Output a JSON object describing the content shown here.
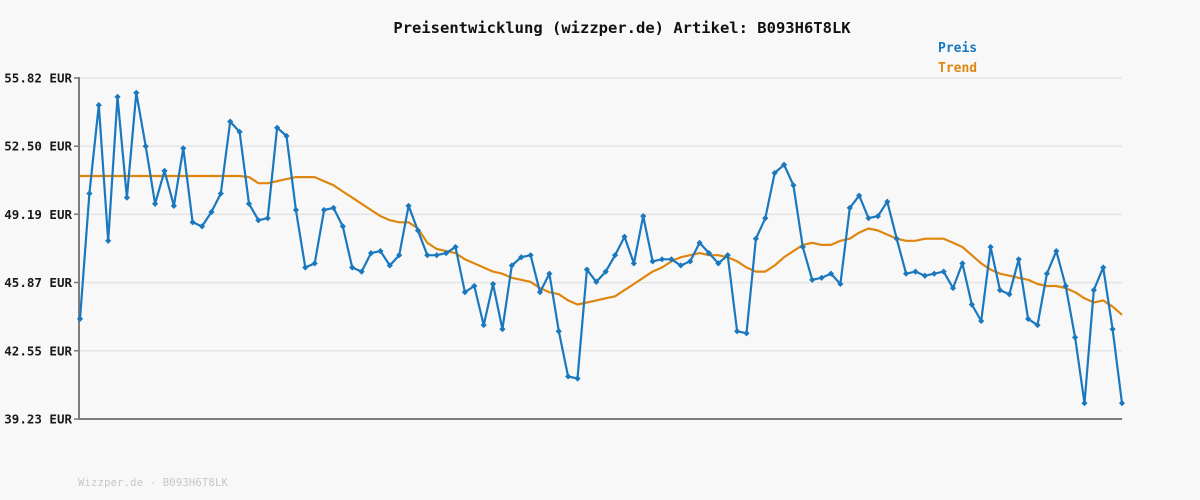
{
  "title": "Preisentwicklung (wizzper.de) Artikel: B093H6T8LK",
  "legend": {
    "price_label": "Preis",
    "trend_label": "Trend"
  },
  "footer": "Wizzper.de - B093H6T8LK",
  "colors": {
    "price": "#1a78be",
    "trend": "#de860f",
    "background": "#f8f8f8",
    "grid": "#e5e5e5",
    "axis": "#7d7d7d",
    "title_text": "#111111",
    "tick_text": "#1a1a1a",
    "footer_text": "#c6c6c6"
  },
  "y_axis": {
    "unit": "EUR",
    "tick_labels": [
      "55.82 EUR",
      "52.50 EUR",
      "49.19 EUR",
      "45.87 EUR",
      "42.55 EUR",
      "39.23 EUR"
    ],
    "tick_values": [
      55.82,
      52.5,
      49.19,
      45.87,
      42.55,
      39.23
    ]
  },
  "x_axis": {
    "tick_labels": []
  },
  "chart_data": {
    "type": "line",
    "title": "Preisentwicklung (wizzper.de) Artikel: B093H6T8LK",
    "xlabel": "",
    "ylabel": "EUR",
    "ylim": [
      39.23,
      55.82
    ],
    "grid": true,
    "legend_position": "top-right",
    "n_points": 112,
    "series": [
      {
        "name": "Preis",
        "color": "#1a78be",
        "marker": "diamond",
        "values": [
          44.1,
          50.2,
          54.5,
          47.9,
          54.9,
          50.0,
          55.1,
          52.5,
          49.7,
          51.3,
          49.6,
          52.4,
          48.8,
          48.6,
          49.3,
          50.2,
          53.7,
          53.2,
          49.7,
          48.9,
          49.0,
          53.4,
          53.0,
          49.4,
          46.6,
          46.8,
          49.4,
          49.5,
          48.6,
          46.6,
          46.4,
          47.3,
          47.4,
          46.7,
          47.2,
          49.6,
          48.4,
          47.2,
          47.2,
          47.3,
          47.6,
          45.4,
          45.7,
          43.8,
          45.8,
          43.6,
          46.7,
          47.1,
          47.2,
          45.4,
          46.3,
          43.5,
          41.3,
          41.2,
          46.5,
          45.9,
          46.4,
          47.2,
          48.1,
          46.8,
          49.1,
          46.9,
          47.0,
          47.0,
          46.7,
          46.9,
          47.8,
          47.3,
          46.8,
          47.2,
          43.5,
          43.4,
          48.0,
          49.0,
          51.2,
          51.6,
          50.6,
          47.6,
          46.0,
          46.1,
          46.3,
          45.8,
          49.5,
          50.1,
          49.0,
          49.1,
          49.8,
          48.0,
          46.3,
          46.4,
          46.2,
          46.3,
          46.4,
          45.6,
          46.8,
          44.8,
          44.0,
          47.6,
          45.5,
          45.3,
          47.0,
          44.1,
          43.8,
          46.3,
          47.4,
          45.7,
          43.2,
          40.0,
          45.5,
          46.6,
          43.6,
          40.0
        ]
      },
      {
        "name": "Trend",
        "color": "#de860f",
        "marker": "none",
        "values": [
          51.05,
          51.05,
          51.05,
          51.05,
          51.05,
          51.05,
          51.05,
          51.05,
          51.05,
          51.05,
          51.05,
          51.05,
          51.05,
          51.05,
          51.05,
          51.05,
          51.05,
          51.05,
          51.0,
          50.7,
          50.7,
          50.8,
          50.9,
          51.0,
          51.0,
          51.0,
          50.8,
          50.6,
          50.3,
          50.0,
          49.7,
          49.4,
          49.1,
          48.9,
          48.8,
          48.8,
          48.5,
          47.8,
          47.5,
          47.4,
          47.3,
          47.0,
          46.8,
          46.6,
          46.4,
          46.3,
          46.1,
          46.0,
          45.9,
          45.6,
          45.4,
          45.3,
          45.0,
          44.8,
          44.9,
          45.0,
          45.1,
          45.2,
          45.5,
          45.8,
          46.1,
          46.4,
          46.6,
          46.9,
          47.1,
          47.2,
          47.3,
          47.2,
          47.2,
          47.1,
          46.9,
          46.6,
          46.4,
          46.4,
          46.7,
          47.1,
          47.4,
          47.7,
          47.8,
          47.7,
          47.7,
          47.9,
          48.0,
          48.3,
          48.5,
          48.4,
          48.2,
          48.0,
          47.9,
          47.9,
          48.0,
          48.0,
          48.0,
          47.8,
          47.6,
          47.2,
          46.8,
          46.5,
          46.3,
          46.2,
          46.1,
          46.0,
          45.8,
          45.7,
          45.7,
          45.6,
          45.4,
          45.1,
          44.9,
          45.0,
          44.7,
          44.3
        ]
      }
    ]
  }
}
